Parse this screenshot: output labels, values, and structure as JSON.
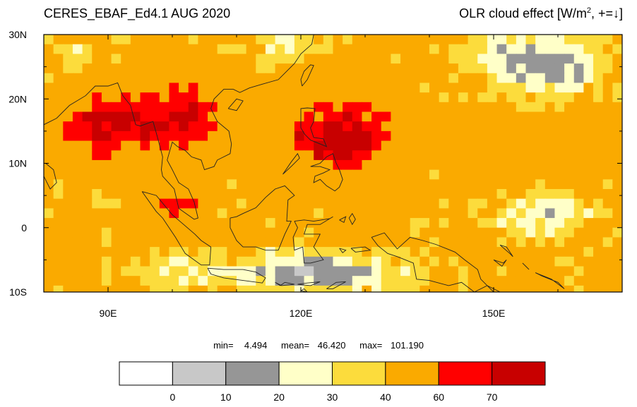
{
  "header": {
    "left_title": "CERES_EBAF_Ed4.1 AUG 2020",
    "right_title_prefix": "OLR cloud effect [W/m",
    "right_title_sup": "2",
    "right_title_suffix": ", +=↓]"
  },
  "map": {
    "lon_range": [
      80,
      170
    ],
    "lat_range": [
      -10,
      30
    ],
    "lat_ticks": [
      {
        "value": 30,
        "label": "30N"
      },
      {
        "value": 20,
        "label": "20N"
      },
      {
        "value": 10,
        "label": "10N"
      },
      {
        "value": 0,
        "label": "0"
      },
      {
        "value": -10,
        "label": "10S"
      }
    ],
    "lon_ticks": [
      {
        "value": 90,
        "label": "90E"
      },
      {
        "value": 120,
        "label": "120E"
      },
      {
        "value": 150,
        "label": "150E"
      }
    ],
    "colors": [
      "#ffffff",
      "#c8c8c8",
      "#969696",
      "#ffffc8",
      "#fcdc3c",
      "#faaa00",
      "#ff0000",
      "#c80000"
    ]
  },
  "stats": {
    "min_label": "min=",
    "min_value": "4.494",
    "mean_label": "mean=",
    "mean_value": "46.420",
    "max_label": "max=",
    "max_value": "101.190"
  },
  "colorbar": {
    "levels": [
      "0",
      "10",
      "20",
      "30",
      "40",
      "60",
      "70"
    ],
    "colors": [
      "#ffffff",
      "#c8c8c8",
      "#969696",
      "#ffffc8",
      "#fcdc3c",
      "#faaa00",
      "#ff0000",
      "#c80000"
    ]
  }
}
